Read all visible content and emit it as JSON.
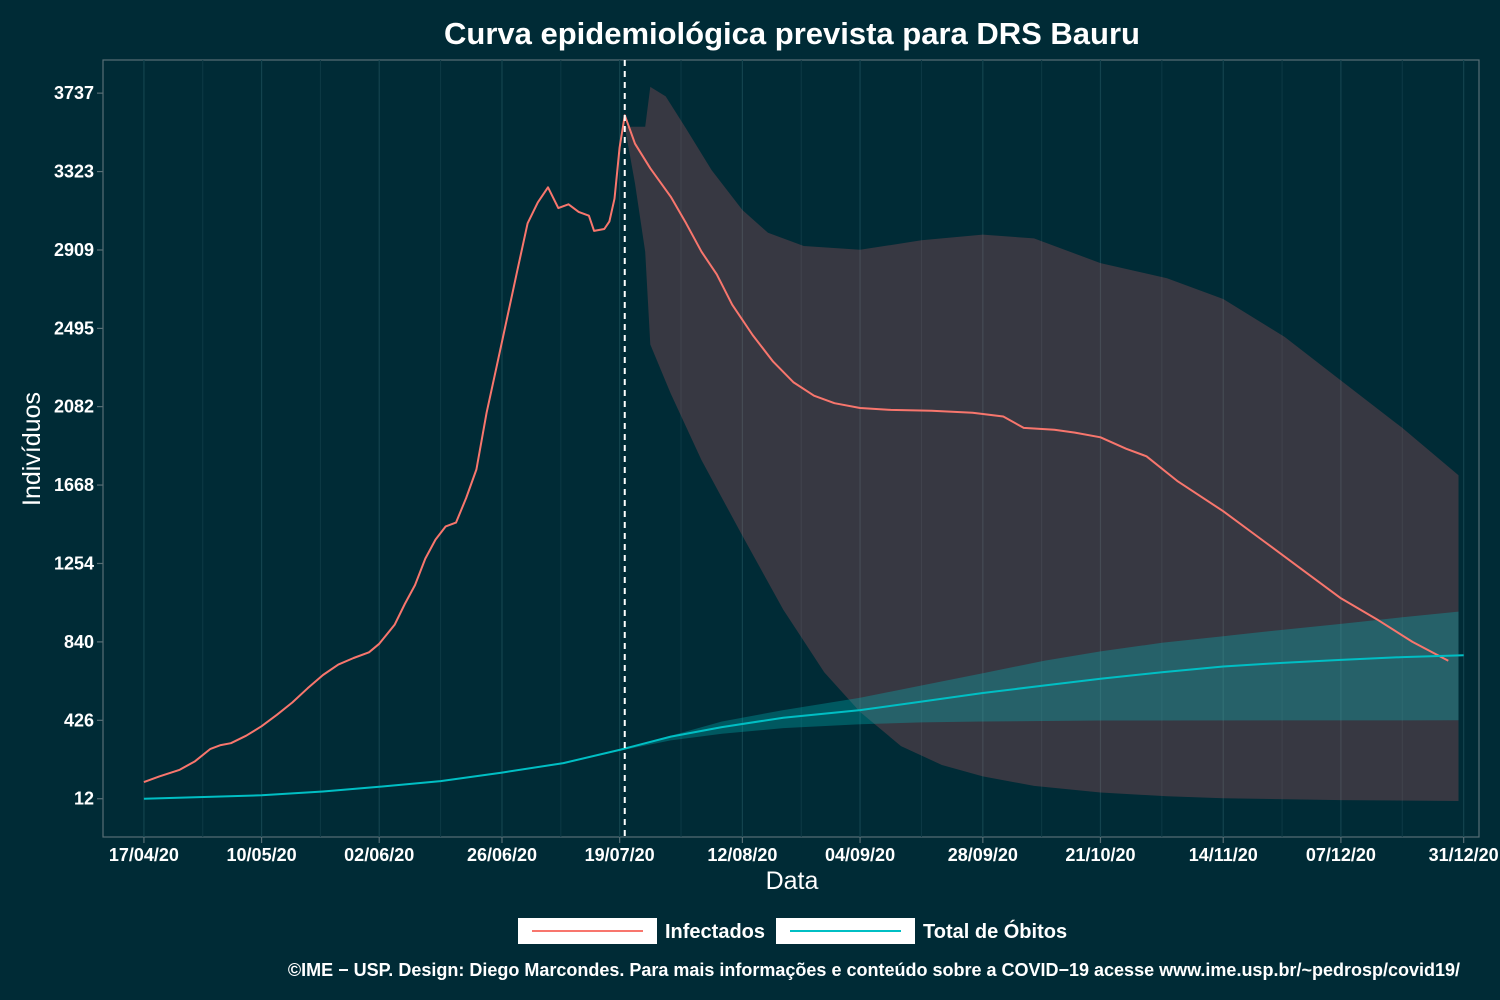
{
  "chart_data": {
    "type": "line",
    "title": "Curva epidemiológica prevista para DRS Bauru",
    "xlabel": "Data",
    "ylabel": "Indivíduos",
    "x_range": [
      "2020-04-09",
      "2021-01-03"
    ],
    "ylim": [
      -190,
      3912
    ],
    "x_ticks": [
      {
        "date": "2020-04-17",
        "label": "17/04/20"
      },
      {
        "date": "2020-05-10",
        "label": "10/05/20"
      },
      {
        "date": "2020-06-02",
        "label": "02/06/20"
      },
      {
        "date": "2020-06-26",
        "label": "26/06/20"
      },
      {
        "date": "2020-07-19",
        "label": "19/07/20"
      },
      {
        "date": "2020-08-12",
        "label": "12/08/20"
      },
      {
        "date": "2020-09-04",
        "label": "04/09/20"
      },
      {
        "date": "2020-09-28",
        "label": "28/09/20"
      },
      {
        "date": "2020-10-21",
        "label": "21/10/20"
      },
      {
        "date": "2020-11-14",
        "label": "14/11/20"
      },
      {
        "date": "2020-12-07",
        "label": "07/12/20"
      },
      {
        "date": "2020-12-31",
        "label": "31/12/20"
      }
    ],
    "y_ticks": [
      {
        "value": 12,
        "label": "12"
      },
      {
        "value": 426,
        "label": "426"
      },
      {
        "value": 840,
        "label": "840"
      },
      {
        "value": 1254,
        "label": "1254"
      },
      {
        "value": 1668,
        "label": "1668"
      },
      {
        "value": 2082,
        "label": "2082"
      },
      {
        "value": 2495,
        "label": "2495"
      },
      {
        "value": 2909,
        "label": "2909"
      },
      {
        "value": 3323,
        "label": "3323"
      },
      {
        "value": 3737,
        "label": "3737"
      }
    ],
    "forecast_start": "2020-07-20",
    "grid": true,
    "legend_position": "bottom",
    "series": [
      {
        "name": "Infectados",
        "color": "#f8766d",
        "values": [
          [
            "2020-04-17",
            100
          ],
          [
            "2020-04-20",
            130
          ],
          [
            "2020-04-24",
            165
          ],
          [
            "2020-04-27",
            210
          ],
          [
            "2020-04-30",
            275
          ],
          [
            "2020-05-02",
            295
          ],
          [
            "2020-05-04",
            305
          ],
          [
            "2020-05-07",
            345
          ],
          [
            "2020-05-10",
            395
          ],
          [
            "2020-05-13",
            455
          ],
          [
            "2020-05-16",
            520
          ],
          [
            "2020-05-19",
            595
          ],
          [
            "2020-05-22",
            665
          ],
          [
            "2020-05-25",
            720
          ],
          [
            "2020-05-28",
            755
          ],
          [
            "2020-05-31",
            785
          ],
          [
            "2020-06-02",
            830
          ],
          [
            "2020-06-05",
            930
          ],
          [
            "2020-06-07",
            1040
          ],
          [
            "2020-06-09",
            1140
          ],
          [
            "2020-06-11",
            1280
          ],
          [
            "2020-06-13",
            1380
          ],
          [
            "2020-06-15",
            1450
          ],
          [
            "2020-06-17",
            1470
          ],
          [
            "2020-06-19",
            1600
          ],
          [
            "2020-06-21",
            1750
          ],
          [
            "2020-06-23",
            2050
          ],
          [
            "2020-06-25",
            2300
          ],
          [
            "2020-06-27",
            2550
          ],
          [
            "2020-06-29",
            2800
          ],
          [
            "2020-07-01",
            3050
          ],
          [
            "2020-07-03",
            3160
          ],
          [
            "2020-07-05",
            3240
          ],
          [
            "2020-07-07",
            3130
          ],
          [
            "2020-07-09",
            3150
          ],
          [
            "2020-07-11",
            3110
          ],
          [
            "2020-07-13",
            3090
          ],
          [
            "2020-07-14",
            3010
          ],
          [
            "2020-07-16",
            3020
          ],
          [
            "2020-07-17",
            3060
          ],
          [
            "2020-07-18",
            3180
          ],
          [
            "2020-07-19",
            3450
          ],
          [
            "2020-07-20",
            3620
          ],
          [
            "2020-07-22",
            3470
          ],
          [
            "2020-07-25",
            3340
          ],
          [
            "2020-07-29",
            3190
          ],
          [
            "2020-08-01",
            3050
          ],
          [
            "2020-08-04",
            2900
          ],
          [
            "2020-08-07",
            2780
          ],
          [
            "2020-08-10",
            2620
          ],
          [
            "2020-08-14",
            2460
          ],
          [
            "2020-08-18",
            2320
          ],
          [
            "2020-08-22",
            2210
          ],
          [
            "2020-08-26",
            2140
          ],
          [
            "2020-08-30",
            2100
          ],
          [
            "2020-09-04",
            2075
          ],
          [
            "2020-09-10",
            2065
          ],
          [
            "2020-09-18",
            2060
          ],
          [
            "2020-09-26",
            2050
          ],
          [
            "2020-10-02",
            2030
          ],
          [
            "2020-10-06",
            1970
          ],
          [
            "2020-10-12",
            1960
          ],
          [
            "2020-10-16",
            1945
          ],
          [
            "2020-10-21",
            1920
          ],
          [
            "2020-10-26",
            1860
          ],
          [
            "2020-10-30",
            1820
          ],
          [
            "2020-11-05",
            1690
          ],
          [
            "2020-11-14",
            1530
          ],
          [
            "2020-11-22",
            1370
          ],
          [
            "2020-11-30",
            1210
          ],
          [
            "2020-12-07",
            1070
          ],
          [
            "2020-12-14",
            960
          ],
          [
            "2020-12-21",
            840
          ],
          [
            "2020-12-28",
            740
          ]
        ]
      },
      {
        "name": "Total de Óbitos",
        "color": "#00bfc4",
        "values": [
          [
            "2020-04-17",
            12
          ],
          [
            "2020-04-27",
            20
          ],
          [
            "2020-05-10",
            30
          ],
          [
            "2020-05-22",
            50
          ],
          [
            "2020-06-02",
            75
          ],
          [
            "2020-06-14",
            105
          ],
          [
            "2020-06-26",
            150
          ],
          [
            "2020-07-08",
            200
          ],
          [
            "2020-07-19",
            270
          ],
          [
            "2020-07-29",
            340
          ],
          [
            "2020-08-08",
            390
          ],
          [
            "2020-08-20",
            440
          ],
          [
            "2020-09-04",
            480
          ],
          [
            "2020-09-16",
            525
          ],
          [
            "2020-09-28",
            570
          ],
          [
            "2020-10-10",
            610
          ],
          [
            "2020-10-21",
            645
          ],
          [
            "2020-11-02",
            680
          ],
          [
            "2020-11-14",
            710
          ],
          [
            "2020-11-26",
            730
          ],
          [
            "2020-12-07",
            745
          ],
          [
            "2020-12-19",
            760
          ],
          [
            "2020-12-31",
            770
          ]
        ]
      }
    ],
    "bands": [
      {
        "series": "Infectados",
        "color": "#fc6b6c",
        "upper": [
          [
            "2020-07-20",
            3560
          ],
          [
            "2020-07-22",
            3560
          ],
          [
            "2020-07-24",
            3560
          ],
          [
            "2020-07-25",
            3770
          ],
          [
            "2020-07-28",
            3720
          ],
          [
            "2020-08-01",
            3550
          ],
          [
            "2020-08-06",
            3330
          ],
          [
            "2020-08-12",
            3120
          ],
          [
            "2020-08-17",
            3000
          ],
          [
            "2020-08-24",
            2930
          ],
          [
            "2020-09-04",
            2910
          ],
          [
            "2020-09-16",
            2960
          ],
          [
            "2020-09-28",
            2990
          ],
          [
            "2020-10-08",
            2970
          ],
          [
            "2020-10-21",
            2840
          ],
          [
            "2020-11-03",
            2760
          ],
          [
            "2020-11-14",
            2650
          ],
          [
            "2020-11-26",
            2450
          ],
          [
            "2020-12-07",
            2220
          ],
          [
            "2020-12-19",
            1970
          ],
          [
            "2020-12-30",
            1720
          ]
        ],
        "lower": [
          [
            "2020-07-20",
            3560
          ],
          [
            "2020-07-22",
            3260
          ],
          [
            "2020-07-24",
            2900
          ],
          [
            "2020-07-25",
            2410
          ],
          [
            "2020-07-29",
            2150
          ],
          [
            "2020-08-04",
            1800
          ],
          [
            "2020-08-12",
            1400
          ],
          [
            "2020-08-20",
            1010
          ],
          [
            "2020-08-28",
            680
          ],
          [
            "2020-09-04",
            470
          ],
          [
            "2020-09-12",
            290
          ],
          [
            "2020-09-20",
            190
          ],
          [
            "2020-09-28",
            130
          ],
          [
            "2020-10-08",
            80
          ],
          [
            "2020-10-21",
            45
          ],
          [
            "2020-11-03",
            25
          ],
          [
            "2020-11-14",
            15
          ],
          [
            "2020-12-07",
            5
          ],
          [
            "2020-12-30",
            0
          ]
        ]
      },
      {
        "series": "Total de Óbitos",
        "color": "#00bfc4",
        "upper": [
          [
            "2020-07-19",
            265
          ],
          [
            "2020-07-29",
            345
          ],
          [
            "2020-08-08",
            420
          ],
          [
            "2020-08-20",
            480
          ],
          [
            "2020-09-04",
            545
          ],
          [
            "2020-09-16",
            610
          ],
          [
            "2020-09-28",
            675
          ],
          [
            "2020-10-10",
            740
          ],
          [
            "2020-10-21",
            790
          ],
          [
            "2020-11-02",
            835
          ],
          [
            "2020-11-14",
            870
          ],
          [
            "2020-11-26",
            905
          ],
          [
            "2020-12-07",
            935
          ],
          [
            "2020-12-19",
            970
          ],
          [
            "2020-12-30",
            1000
          ]
        ],
        "lower": [
          [
            "2020-07-19",
            265
          ],
          [
            "2020-07-29",
            320
          ],
          [
            "2020-08-08",
            355
          ],
          [
            "2020-08-20",
            385
          ],
          [
            "2020-09-04",
            405
          ],
          [
            "2020-09-16",
            415
          ],
          [
            "2020-09-28",
            420
          ],
          [
            "2020-10-21",
            425
          ],
          [
            "2020-12-30",
            426
          ]
        ]
      }
    ]
  },
  "legend": {
    "items": [
      {
        "label": "Infectados",
        "color": "#f8766d"
      },
      {
        "label": "Total de Óbitos",
        "color": "#00bfc4"
      }
    ]
  },
  "caption": "©IME − USP. Design: Diego Marcondes. Para mais informações e conteúdo sobre a COVID−19 acesse www.ime.usp.br/~pedrosp/covid19/"
}
